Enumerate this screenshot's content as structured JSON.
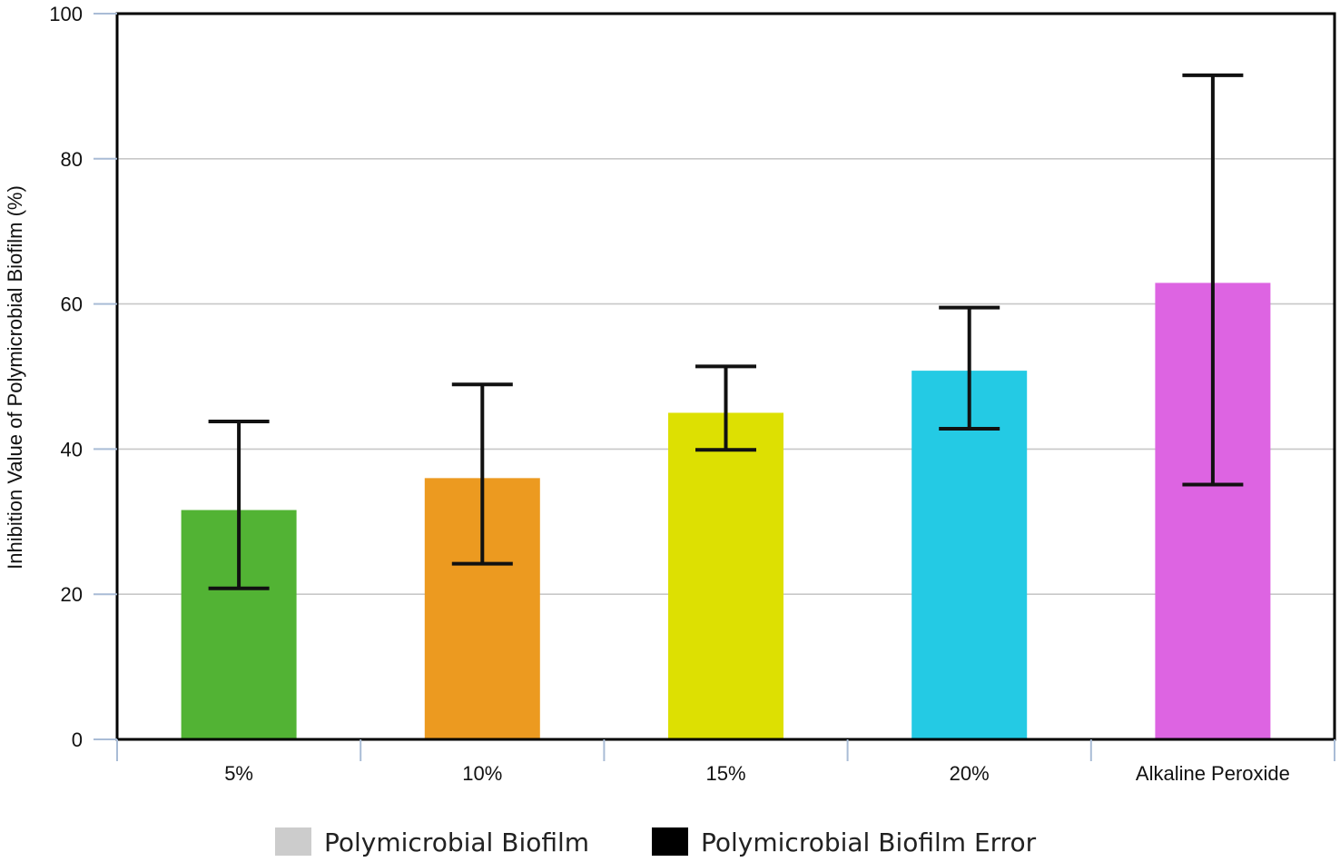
{
  "chart_data": {
    "type": "bar",
    "categories": [
      "5%",
      "10%",
      "15%",
      "20%",
      "Alkaline Peroxide"
    ],
    "series": [
      {
        "name": "Polymicrobial Biofilm",
        "values": [
          31.6,
          36.0,
          45.0,
          50.8,
          62.9
        ],
        "error_low": [
          20.8,
          24.2,
          39.9,
          42.8,
          35.1
        ],
        "error_high": [
          43.8,
          48.9,
          51.4,
          59.5,
          91.5
        ],
        "colors": [
          "#52b334",
          "#ec9a20",
          "#dde002",
          "#24cae4",
          "#dd64e2"
        ]
      }
    ],
    "ylabel": "Inhibition Value of Polymicrobial Biofilm (%)",
    "ylim": [
      0,
      100
    ],
    "yticks": [
      "0",
      "20",
      "40",
      "60",
      "80",
      "100"
    ],
    "grid": true,
    "legend_position": "bottom",
    "legend": [
      {
        "label": "Polymicrobial Biofilm",
        "color": "#cccccc"
      },
      {
        "label": "Polymicrobial Biofilm Error",
        "color": "#000000"
      }
    ],
    "gridline_color": "#c8c8c8",
    "tick_color": "#a9bcd6",
    "error_bar_color": "#111111"
  }
}
